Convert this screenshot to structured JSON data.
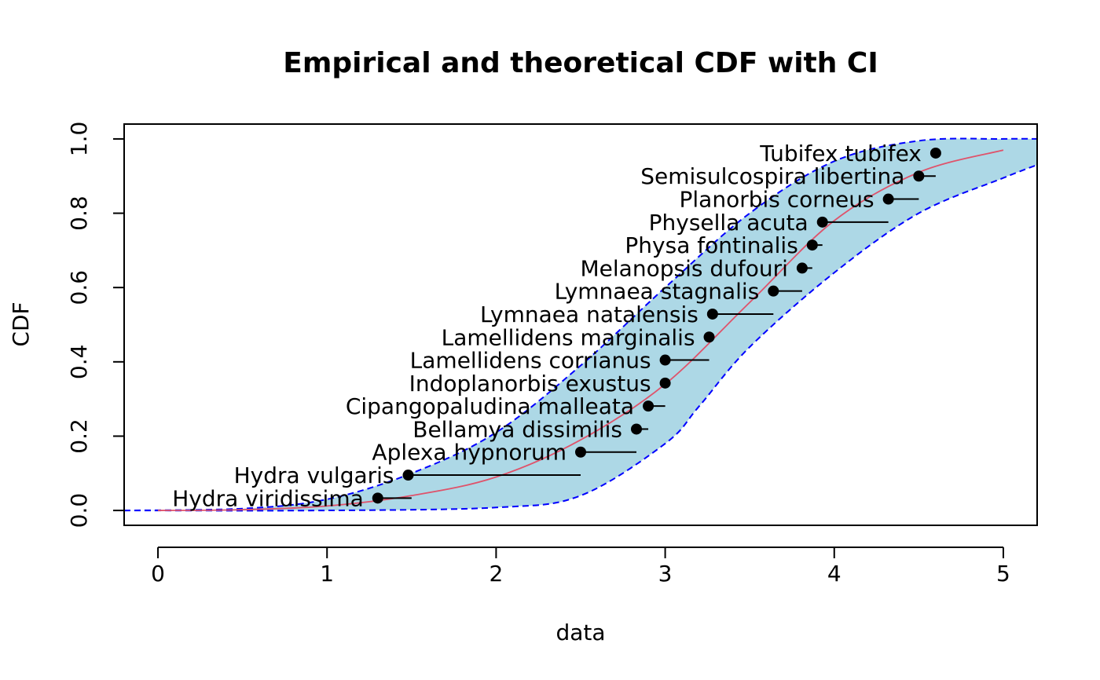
{
  "chart_data": {
    "type": "scatter",
    "title": "Empirical and theoretical CDF with CI",
    "xlabel": "data",
    "ylabel": "CDF",
    "xlim": [
      -0.2,
      5.2
    ],
    "ylim": [
      -0.04,
      1.04
    ],
    "x_ticks": [
      0,
      1,
      2,
      3,
      4,
      5
    ],
    "y_ticks": [
      0.0,
      0.2,
      0.4,
      0.6,
      0.8,
      1.0
    ],
    "x_tick_labels": [
      "0",
      "1",
      "2",
      "3",
      "4",
      "5"
    ],
    "y_tick_labels": [
      "0.0",
      "0.2",
      "0.4",
      "0.6",
      "0.8",
      "1.0"
    ],
    "grid": false,
    "colors": {
      "band_fill": "#add8e6",
      "band_border": "#0000ff",
      "theoretical_line": "#df536b",
      "points": "#000000"
    },
    "points": [
      {
        "label": "Hydra viridissima",
        "left": 1.3,
        "right": 1.5,
        "cdf": 0.0333
      },
      {
        "label": "Hydra vulgaris",
        "left": 1.48,
        "right": 2.5,
        "cdf": 0.0952
      },
      {
        "label": "Aplexa hypnorum",
        "left": 2.5,
        "right": 2.83,
        "cdf": 0.1571
      },
      {
        "label": "Bellamya dissimilis",
        "left": 2.83,
        "right": 2.9,
        "cdf": 0.219
      },
      {
        "label": "Cipangopaludina malleata",
        "left": 2.9,
        "right": 3.0,
        "cdf": 0.281
      },
      {
        "label": "Indoplanorbis exustus",
        "left": 3.0,
        "right": 3.0,
        "cdf": 0.3429
      },
      {
        "label": "Lamellidens corrianus",
        "left": 3.0,
        "right": 3.26,
        "cdf": 0.4048
      },
      {
        "label": "Lamellidens marginalis",
        "left": 3.26,
        "right": 3.26,
        "cdf": 0.4667
      },
      {
        "label": "Lymnaea natalensis",
        "left": 3.28,
        "right": 3.64,
        "cdf": 0.5286
      },
      {
        "label": "Lymnaea stagnalis",
        "left": 3.64,
        "right": 3.81,
        "cdf": 0.5905
      },
      {
        "label": "Melanopsis dufouri",
        "left": 3.81,
        "right": 3.87,
        "cdf": 0.6524
      },
      {
        "label": "Physa fontinalis",
        "left": 3.87,
        "right": 3.93,
        "cdf": 0.7143
      },
      {
        "label": "Physella acuta",
        "left": 3.93,
        "right": 4.32,
        "cdf": 0.7762
      },
      {
        "label": "Planorbis corneus",
        "left": 4.32,
        "right": 4.5,
        "cdf": 0.8381
      },
      {
        "label": "Semisulcospira libertina",
        "left": 4.5,
        "right": 4.6,
        "cdf": 0.9
      },
      {
        "label": "Tubifex tubifex",
        "left": 4.6,
        "right": 4.6,
        "cdf": 0.9619
      }
    ],
    "theoretical_cdf": {
      "x": [
        0.0,
        0.5,
        1.0,
        1.5,
        2.0,
        2.5,
        3.0,
        3.5,
        4.0,
        4.5,
        5.0
      ],
      "y": [
        0.0,
        0.002,
        0.012,
        0.04,
        0.09,
        0.19,
        0.34,
        0.56,
        0.78,
        0.91,
        0.97
      ]
    },
    "ci_upper": {
      "x": [
        -0.2,
        0.5,
        1.0,
        1.5,
        2.0,
        2.5,
        3.0,
        3.5,
        4.0,
        4.5,
        5.0,
        5.2
      ],
      "y": [
        0.0,
        0.005,
        0.03,
        0.1,
        0.21,
        0.39,
        0.6,
        0.8,
        0.94,
        0.995,
        1.0,
        1.0
      ]
    },
    "ci_lower": {
      "x": [
        -0.2,
        1.0,
        2.0,
        2.5,
        3.0,
        3.2,
        3.5,
        4.0,
        4.5,
        5.0,
        5.2
      ],
      "y": [
        0.0,
        0.0,
        0.008,
        0.04,
        0.18,
        0.28,
        0.44,
        0.64,
        0.8,
        0.895,
        0.93
      ]
    }
  }
}
